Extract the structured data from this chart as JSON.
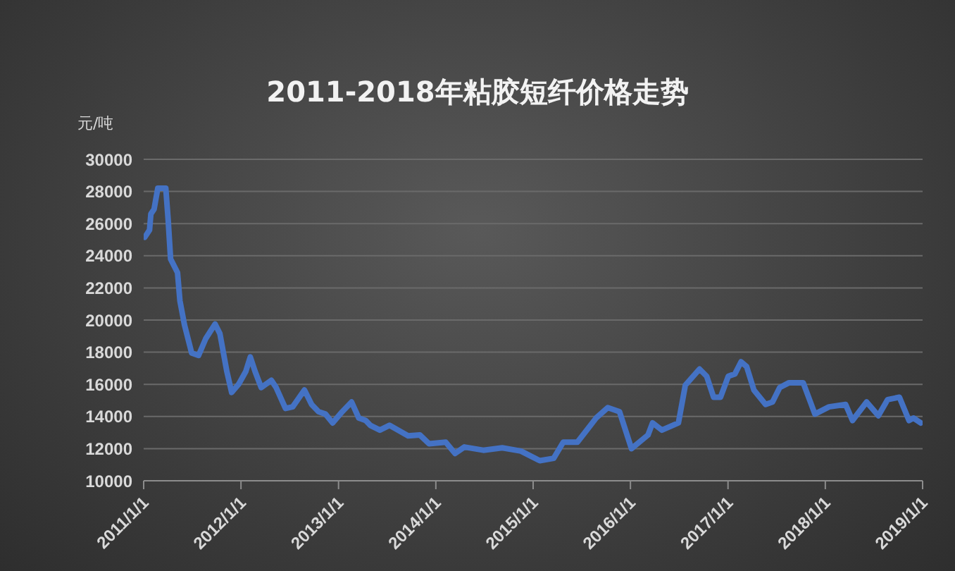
{
  "chart_data": {
    "type": "line",
    "title": "2011-2018年粘胶短纤价格走势",
    "ylabel": "元/吨",
    "x": [
      "2011-01-05",
      "2011-01-23",
      "2011-01-28",
      "2011-02-09",
      "2011-02-23",
      "2011-03-25",
      "2011-04-03",
      "2011-04-12",
      "2011-05-08",
      "2011-05-17",
      "2011-06-03",
      "2011-06-30",
      "2011-07-26",
      "2011-08-22",
      "2011-09-26",
      "2011-10-14",
      "2011-11-09",
      "2011-11-27",
      "2011-12-23",
      "2012-01-19",
      "2012-02-05",
      "2012-02-23",
      "2012-03-17",
      "2012-04-24",
      "2012-05-12",
      "2012-06-16",
      "2012-07-13",
      "2012-08-26",
      "2012-09-22",
      "2012-10-18",
      "2012-11-13",
      "2012-12-10",
      "2013-01-15",
      "2013-02-19",
      "2013-03-18",
      "2013-04-13",
      "2013-04-30",
      "2013-06-05",
      "2013-07-11",
      "2013-09-19",
      "2013-11-02",
      "2013-12-07",
      "2014-02-07",
      "2014-03-14",
      "2014-04-18",
      "2014-06-28",
      "2014-09-07",
      "2014-11-16",
      "2015-01-26",
      "2015-03-19",
      "2015-04-24",
      "2015-06-16",
      "2015-07-21",
      "2015-08-25",
      "2015-10-08",
      "2015-11-21",
      "2016-01-05",
      "2016-03-07",
      "2016-03-24",
      "2016-04-28",
      "2016-06-29",
      "2016-07-25",
      "2016-09-16",
      "2016-10-13",
      "2016-11-08",
      "2016-12-04",
      "2017-01-02",
      "2017-01-27",
      "2017-02-19",
      "2017-03-12",
      "2017-04-08",
      "2017-05-22",
      "2017-06-17",
      "2017-07-14",
      "2017-08-18",
      "2017-10-10",
      "2017-11-23",
      "2018-01-15",
      "2018-03-18",
      "2018-04-13",
      "2018-06-05",
      "2018-07-19",
      "2018-08-23",
      "2018-10-06",
      "2018-11-11",
      "2018-11-28",
      "2018-12-25"
    ],
    "series": [
      {
        "color": "#4472c4",
        "values": [
          25150,
          25600,
          26600,
          26900,
          28200,
          28200,
          26200,
          23800,
          22950,
          21200,
          19700,
          17950,
          17800,
          18850,
          19750,
          19150,
          16800,
          15500,
          16000,
          16800,
          17700,
          16800,
          15800,
          16250,
          15800,
          14500,
          14600,
          15650,
          14750,
          14300,
          14150,
          13600,
          14300,
          14900,
          13900,
          13750,
          13450,
          13150,
          13450,
          12800,
          12850,
          12300,
          12400,
          11700,
          12100,
          11900,
          12050,
          11850,
          11250,
          11400,
          12400,
          12400,
          13150,
          13900,
          14550,
          14300,
          12000,
          12850,
          13600,
          13150,
          13600,
          15950,
          16950,
          16500,
          15200,
          15200,
          16500,
          16650,
          17400,
          17100,
          15650,
          14750,
          14900,
          15800,
          16100,
          16100,
          14150,
          14600,
          14750,
          13750,
          14900,
          14050,
          15050,
          15200,
          13750,
          13900,
          13600
        ]
      }
    ],
    "xlim": [
      "2011-01-01",
      "2019-01-01"
    ],
    "xticks": [
      {
        "value": "2011-01-01",
        "label": "2011/1/1"
      },
      {
        "value": "2012-01-01",
        "label": "2012/1/1"
      },
      {
        "value": "2013-01-01",
        "label": "2013/1/1"
      },
      {
        "value": "2014-01-01",
        "label": "2014/1/1"
      },
      {
        "value": "2015-01-01",
        "label": "2015/1/1"
      },
      {
        "value": "2016-01-01",
        "label": "2016/1/1"
      },
      {
        "value": "2017-01-01",
        "label": "2017/1/1"
      },
      {
        "value": "2018-01-01",
        "label": "2018/1/1"
      },
      {
        "value": "2019-01-01",
        "label": "2019/1/1"
      }
    ],
    "ylim": [
      10000,
      30000
    ],
    "yticks": [
      10000,
      12000,
      14000,
      16000,
      18000,
      20000,
      22000,
      24000,
      26000,
      28000,
      30000
    ],
    "grid": "y",
    "legend": false,
    "marker": "none",
    "line_style": "solid"
  }
}
